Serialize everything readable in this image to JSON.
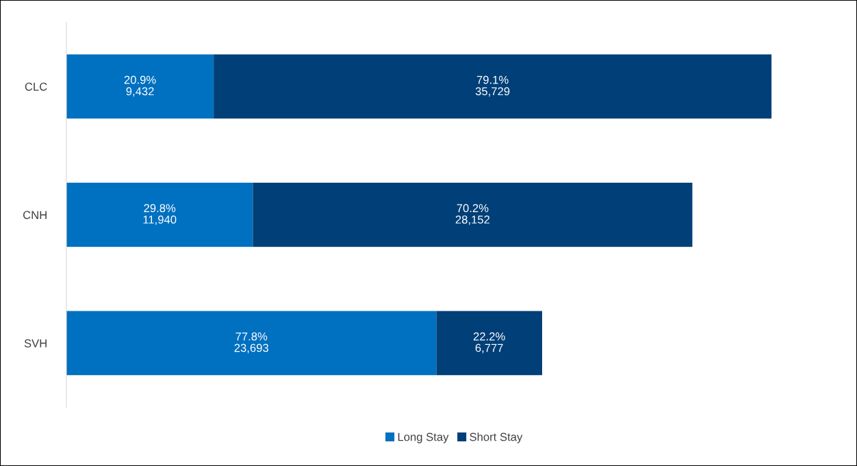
{
  "chart_data": {
    "type": "bar",
    "orientation": "horizontal",
    "stacked": true,
    "categories": [
      "CLC",
      "CNH",
      "SVH"
    ],
    "series": [
      {
        "name": "Long Stay",
        "color": "#0070c0",
        "values": [
          9432,
          11940,
          23693
        ],
        "value_labels": [
          "20.9%\n9,432",
          "29.8%\n11,940",
          "77.8%\n23,693"
        ]
      },
      {
        "name": "Short Stay",
        "color": "#003f78",
        "values": [
          35729,
          28152,
          6777
        ],
        "value_labels": [
          "79.1%\n35,729",
          "70.2%\n28,152",
          "22.2%\n6,777"
        ]
      }
    ],
    "tick_labels": "y",
    "grid": false,
    "legend": "bottom"
  }
}
